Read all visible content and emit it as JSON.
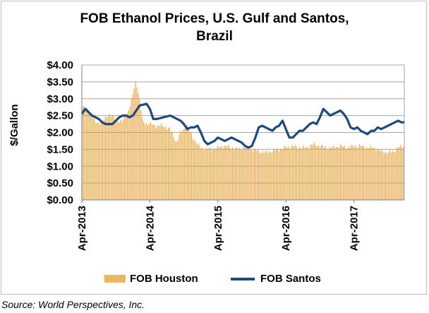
{
  "chart_data": {
    "type": "bar+line",
    "title": "FOB Ethanol Prices, U.S. Gulf and Santos, Brazil",
    "title_lines": [
      "FOB Ethanol Prices, U.S. Gulf and Santos,",
      "Brazil"
    ],
    "ylabel": "$/Gallon",
    "xlabel": "",
    "ylim": [
      0,
      4
    ],
    "yticks": [
      "$0.00",
      "$0.50",
      "$1.00",
      "$1.50",
      "$2.00",
      "$2.50",
      "$3.00",
      "$3.50",
      "$4.00"
    ],
    "x_range": [
      2013.25,
      2017.99
    ],
    "xticks": [
      {
        "label": "Apr-2013",
        "x": 2013.25
      },
      {
        "label": "Apr-2014",
        "x": 2014.25
      },
      {
        "label": "Apr-2015",
        "x": 2015.25
      },
      {
        "label": "Apr-2016",
        "x": 2016.25
      },
      {
        "label": "Apr-2017",
        "x": 2017.25
      }
    ],
    "grid": true,
    "legend_position": "bottom",
    "series": [
      {
        "name": "FOB Houston",
        "kind": "bar",
        "color": "#E3A23A",
        "points": [
          [
            2013.25,
            2.75
          ],
          [
            2013.35,
            2.7
          ],
          [
            2013.45,
            2.3
          ],
          [
            2013.55,
            2.3
          ],
          [
            2013.65,
            2.55
          ],
          [
            2013.75,
            2.4
          ],
          [
            2013.85,
            2.3
          ],
          [
            2013.95,
            2.7
          ],
          [
            2014.0,
            3.1
          ],
          [
            2014.05,
            3.55
          ],
          [
            2014.1,
            3.0
          ],
          [
            2014.15,
            2.3
          ],
          [
            2014.25,
            2.25
          ],
          [
            2014.35,
            2.2
          ],
          [
            2014.45,
            2.2
          ],
          [
            2014.55,
            2.1
          ],
          [
            2014.65,
            1.7
          ],
          [
            2014.7,
            2.0
          ],
          [
            2014.8,
            2.2
          ],
          [
            2014.9,
            1.8
          ],
          [
            2015.0,
            1.55
          ],
          [
            2015.1,
            1.5
          ],
          [
            2015.25,
            1.55
          ],
          [
            2015.35,
            1.6
          ],
          [
            2015.45,
            1.55
          ],
          [
            2015.55,
            1.5
          ],
          [
            2015.65,
            1.55
          ],
          [
            2015.75,
            1.5
          ],
          [
            2015.85,
            1.45
          ],
          [
            2015.95,
            1.4
          ],
          [
            2016.05,
            1.45
          ],
          [
            2016.15,
            1.5
          ],
          [
            2016.25,
            1.55
          ],
          [
            2016.35,
            1.6
          ],
          [
            2016.45,
            1.55
          ],
          [
            2016.55,
            1.55
          ],
          [
            2016.65,
            1.65
          ],
          [
            2016.75,
            1.6
          ],
          [
            2016.85,
            1.55
          ],
          [
            2016.95,
            1.55
          ],
          [
            2017.05,
            1.6
          ],
          [
            2017.15,
            1.55
          ],
          [
            2017.25,
            1.6
          ],
          [
            2017.35,
            1.6
          ],
          [
            2017.45,
            1.55
          ],
          [
            2017.55,
            1.55
          ],
          [
            2017.65,
            1.45
          ],
          [
            2017.75,
            1.4
          ],
          [
            2017.85,
            1.45
          ],
          [
            2017.9,
            1.55
          ],
          [
            2017.99,
            1.6
          ]
        ]
      },
      {
        "name": "FOB Santos",
        "kind": "line",
        "color": "#1F497D",
        "points": [
          [
            2013.25,
            2.55
          ],
          [
            2013.3,
            2.7
          ],
          [
            2013.4,
            2.5
          ],
          [
            2013.5,
            2.4
          ],
          [
            2013.55,
            2.3
          ],
          [
            2013.6,
            2.25
          ],
          [
            2013.7,
            2.25
          ],
          [
            2013.75,
            2.35
          ],
          [
            2013.8,
            2.45
          ],
          [
            2013.85,
            2.5
          ],
          [
            2013.9,
            2.5
          ],
          [
            2013.95,
            2.45
          ],
          [
            2014.0,
            2.5
          ],
          [
            2014.05,
            2.65
          ],
          [
            2014.1,
            2.8
          ],
          [
            2014.2,
            2.85
          ],
          [
            2014.25,
            2.7
          ],
          [
            2014.3,
            2.4
          ],
          [
            2014.35,
            2.4
          ],
          [
            2014.45,
            2.45
          ],
          [
            2014.55,
            2.5
          ],
          [
            2014.6,
            2.45
          ],
          [
            2014.7,
            2.35
          ],
          [
            2014.75,
            2.25
          ],
          [
            2014.8,
            2.1
          ],
          [
            2014.85,
            2.15
          ],
          [
            2014.9,
            2.15
          ],
          [
            2014.95,
            2.2
          ],
          [
            2015.0,
            2.0
          ],
          [
            2015.05,
            1.75
          ],
          [
            2015.1,
            1.65
          ],
          [
            2015.15,
            1.7
          ],
          [
            2015.2,
            1.75
          ],
          [
            2015.25,
            1.85
          ],
          [
            2015.3,
            1.8
          ],
          [
            2015.35,
            1.75
          ],
          [
            2015.4,
            1.8
          ],
          [
            2015.45,
            1.85
          ],
          [
            2015.5,
            1.8
          ],
          [
            2015.55,
            1.75
          ],
          [
            2015.6,
            1.7
          ],
          [
            2015.65,
            1.6
          ],
          [
            2015.7,
            1.55
          ],
          [
            2015.75,
            1.6
          ],
          [
            2015.8,
            1.85
          ],
          [
            2015.85,
            2.15
          ],
          [
            2015.9,
            2.2
          ],
          [
            2015.95,
            2.15
          ],
          [
            2016.0,
            2.1
          ],
          [
            2016.05,
            2.05
          ],
          [
            2016.1,
            2.15
          ],
          [
            2016.15,
            2.2
          ],
          [
            2016.2,
            2.35
          ],
          [
            2016.25,
            2.1
          ],
          [
            2016.3,
            1.85
          ],
          [
            2016.35,
            1.85
          ],
          [
            2016.4,
            1.95
          ],
          [
            2016.45,
            2.05
          ],
          [
            2016.5,
            2.05
          ],
          [
            2016.55,
            2.15
          ],
          [
            2016.6,
            2.25
          ],
          [
            2016.65,
            2.3
          ],
          [
            2016.7,
            2.25
          ],
          [
            2016.75,
            2.45
          ],
          [
            2016.8,
            2.7
          ],
          [
            2016.85,
            2.6
          ],
          [
            2016.9,
            2.5
          ],
          [
            2016.95,
            2.55
          ],
          [
            2017.0,
            2.6
          ],
          [
            2017.05,
            2.65
          ],
          [
            2017.1,
            2.55
          ],
          [
            2017.15,
            2.4
          ],
          [
            2017.2,
            2.15
          ],
          [
            2017.25,
            2.1
          ],
          [
            2017.3,
            2.15
          ],
          [
            2017.35,
            2.05
          ],
          [
            2017.4,
            2.0
          ],
          [
            2017.45,
            1.95
          ],
          [
            2017.5,
            2.05
          ],
          [
            2017.55,
            2.05
          ],
          [
            2017.6,
            2.15
          ],
          [
            2017.65,
            2.1
          ],
          [
            2017.7,
            2.15
          ],
          [
            2017.75,
            2.2
          ],
          [
            2017.8,
            2.25
          ],
          [
            2017.85,
            2.3
          ],
          [
            2017.9,
            2.35
          ],
          [
            2017.95,
            2.3
          ],
          [
            2017.99,
            2.3
          ]
        ]
      }
    ],
    "source": "Source: World Perspectives, Inc."
  }
}
